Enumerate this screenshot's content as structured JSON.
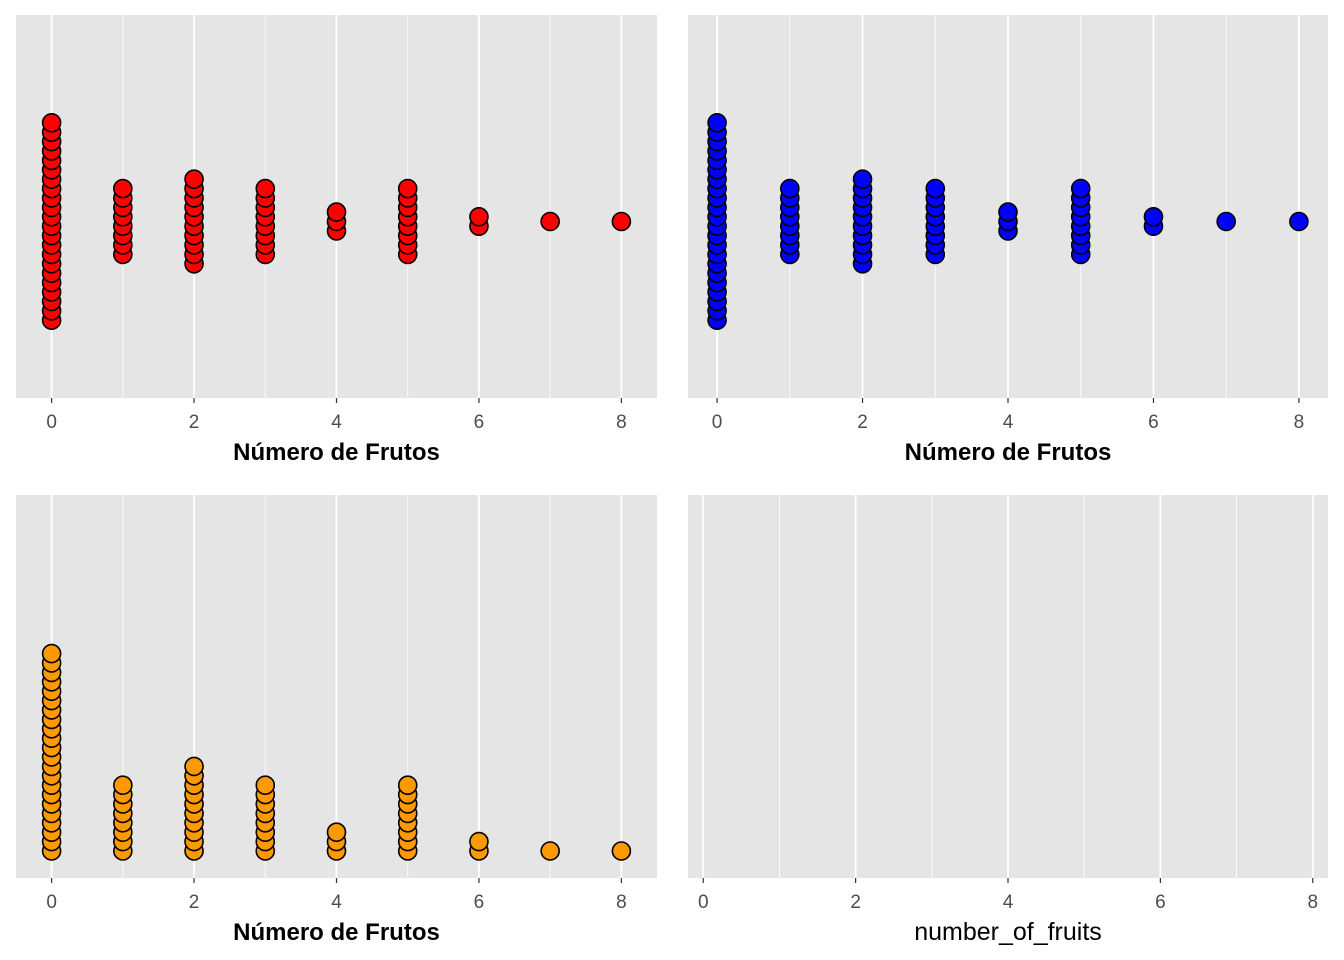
{
  "chart_data": [
    {
      "type": "dotplot",
      "layout": "centered",
      "fill_color": "#ff0000",
      "xlabel": "Número de Frutos",
      "xticks": [
        0,
        2,
        4,
        6,
        8
      ],
      "xlim": [
        -0.5,
        8.5
      ],
      "categories": [
        0,
        1,
        2,
        3,
        4,
        5,
        6,
        7,
        8
      ],
      "counts": [
        22,
        8,
        10,
        8,
        3,
        8,
        2,
        1,
        1
      ]
    },
    {
      "type": "dotplot",
      "layout": "centered",
      "fill_color": "#0000ff",
      "xlabel": "Número de Frutos",
      "xticks": [
        0,
        2,
        4,
        6,
        8
      ],
      "xlim": [
        -0.4,
        8.4
      ],
      "categories": [
        0,
        1,
        2,
        3,
        4,
        5,
        6,
        7,
        8
      ],
      "counts": [
        22,
        8,
        10,
        8,
        3,
        8,
        2,
        1,
        1
      ]
    },
    {
      "type": "dotplot",
      "layout": "stacked",
      "fill_color": "#ff9900",
      "xlabel": "Número de Frutos",
      "xticks": [
        0,
        2,
        4,
        6,
        8
      ],
      "xlim": [
        -0.5,
        8.5
      ],
      "categories": [
        0,
        1,
        2,
        3,
        4,
        5,
        6,
        7,
        8
      ],
      "counts": [
        22,
        8,
        10,
        8,
        3,
        8,
        2,
        1,
        1
      ]
    },
    {
      "type": "dotplot",
      "layout": "empty",
      "xlabel": "number_of_fruits",
      "xticks": [
        0,
        2,
        4,
        6,
        8
      ],
      "xlim": [
        -0.2,
        8.2
      ],
      "categories": [],
      "counts": []
    }
  ]
}
